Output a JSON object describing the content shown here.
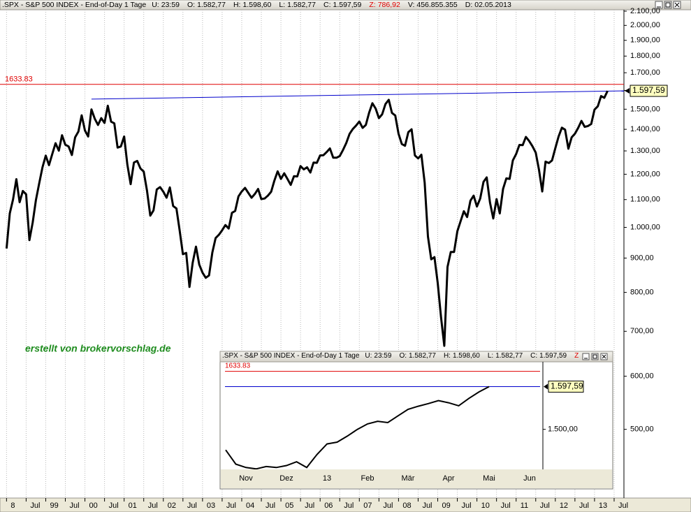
{
  "header": {
    "title": ".SPX - S&P 500 INDEX - End-of-Day 1 Tage",
    "fields": [
      {
        "label": "U:",
        "value": "23:59"
      },
      {
        "label": "O:",
        "value": "1.582,77"
      },
      {
        "label": "H:",
        "value": "1.598,60"
      },
      {
        "label": "L:",
        "value": "1.582,77"
      },
      {
        "label": "C:",
        "value": "1.597,59"
      },
      {
        "label": "Z:",
        "value": "786,92"
      },
      {
        "label": "V:",
        "value": "456.855.355"
      },
      {
        "label": "D:",
        "value": "02.05.2013"
      }
    ]
  },
  "chart_data": [
    {
      "type": "line",
      "color": "#000000",
      "log_y": true,
      "grid": "x",
      "annotation": "erstellt von brokervorschlag.de",
      "x": [
        "1998-01",
        "1998-02",
        "1998-03",
        "1998-04",
        "1998-05",
        "1998-06",
        "1998-07",
        "1998-08",
        "1998-09",
        "1998-10",
        "1998-11",
        "1998-12",
        "1999-01",
        "1999-02",
        "1999-03",
        "1999-04",
        "1999-05",
        "1999-06",
        "1999-07",
        "1999-08",
        "1999-09",
        "1999-10",
        "1999-11",
        "1999-12",
        "2000-01",
        "2000-02",
        "2000-03",
        "2000-04",
        "2000-05",
        "2000-06",
        "2000-07",
        "2000-08",
        "2000-09",
        "2000-10",
        "2000-11",
        "2000-12",
        "2001-01",
        "2001-02",
        "2001-03",
        "2001-04",
        "2001-05",
        "2001-06",
        "2001-07",
        "2001-08",
        "2001-09",
        "2001-10",
        "2001-11",
        "2001-12",
        "2002-01",
        "2002-02",
        "2002-03",
        "2002-04",
        "2002-05",
        "2002-06",
        "2002-07",
        "2002-08",
        "2002-09",
        "2002-10",
        "2002-11",
        "2002-12",
        "2003-01",
        "2003-02",
        "2003-03",
        "2003-04",
        "2003-05",
        "2003-06",
        "2003-07",
        "2003-08",
        "2003-09",
        "2003-10",
        "2003-11",
        "2003-12",
        "2004-01",
        "2004-02",
        "2004-03",
        "2004-04",
        "2004-05",
        "2004-06",
        "2004-07",
        "2004-08",
        "2004-09",
        "2004-10",
        "2004-11",
        "2004-12",
        "2005-01",
        "2005-02",
        "2005-03",
        "2005-04",
        "2005-05",
        "2005-06",
        "2005-07",
        "2005-08",
        "2005-09",
        "2005-10",
        "2005-11",
        "2005-12",
        "2006-01",
        "2006-02",
        "2006-03",
        "2006-04",
        "2006-05",
        "2006-06",
        "2006-07",
        "2006-08",
        "2006-09",
        "2006-10",
        "2006-11",
        "2006-12",
        "2007-01",
        "2007-02",
        "2007-03",
        "2007-04",
        "2007-05",
        "2007-06",
        "2007-07",
        "2007-08",
        "2007-09",
        "2007-10",
        "2007-11",
        "2007-12",
        "2008-01",
        "2008-02",
        "2008-03",
        "2008-04",
        "2008-05",
        "2008-06",
        "2008-07",
        "2008-08",
        "2008-09",
        "2008-10",
        "2008-11",
        "2008-12",
        "2009-01",
        "2009-02",
        "2009-03",
        "2009-04",
        "2009-05",
        "2009-06",
        "2009-07",
        "2009-08",
        "2009-09",
        "2009-10",
        "2009-11",
        "2009-12",
        "2010-01",
        "2010-02",
        "2010-03",
        "2010-04",
        "2010-05",
        "2010-06",
        "2010-07",
        "2010-08",
        "2010-09",
        "2010-10",
        "2010-11",
        "2010-12",
        "2011-01",
        "2011-02",
        "2011-03",
        "2011-04",
        "2011-05",
        "2011-06",
        "2011-07",
        "2011-08",
        "2011-09",
        "2011-10",
        "2011-11",
        "2011-12",
        "2012-01",
        "2012-02",
        "2012-03",
        "2012-04",
        "2012-05",
        "2012-06",
        "2012-07",
        "2012-08",
        "2012-09",
        "2012-10",
        "2012-11",
        "2012-12",
        "2013-01",
        "2013-02",
        "2013-03",
        "2013-04",
        "2013-05"
      ],
      "values": [
        930,
        1049,
        1101,
        1180,
        1090,
        1133,
        1120,
        957,
        1017,
        1098,
        1163,
        1229,
        1279,
        1238,
        1286,
        1335,
        1301,
        1372,
        1328,
        1320,
        1282,
        1362,
        1389,
        1469,
        1394,
        1366,
        1499,
        1452,
        1421,
        1455,
        1431,
        1518,
        1437,
        1429,
        1315,
        1320,
        1366,
        1240,
        1160,
        1249,
        1256,
        1224,
        1211,
        1134,
        1041,
        1060,
        1139,
        1148,
        1130,
        1107,
        1147,
        1076,
        1067,
        990,
        912,
        916,
        815,
        886,
        936,
        880,
        856,
        841,
        848,
        917,
        964,
        975,
        990,
        1008,
        996,
        1051,
        1058,
        1112,
        1131,
        1145,
        1126,
        1107,
        1121,
        1141,
        1102,
        1104,
        1115,
        1130,
        1174,
        1212,
        1181,
        1204,
        1181,
        1157,
        1192,
        1191,
        1234,
        1220,
        1229,
        1207,
        1249,
        1248,
        1280,
        1281,
        1295,
        1311,
        1270,
        1270,
        1277,
        1304,
        1336,
        1378,
        1401,
        1418,
        1438,
        1407,
        1421,
        1482,
        1531,
        1503,
        1455,
        1474,
        1527,
        1549,
        1481,
        1468,
        1379,
        1331,
        1323,
        1386,
        1400,
        1280,
        1267,
        1283,
        1166,
        969,
        896,
        903,
        826,
        735,
        666,
        873,
        919,
        919,
        987,
        1021,
        1057,
        1036,
        1096,
        1115,
        1074,
        1104,
        1169,
        1187,
        1089,
        1031,
        1102,
        1049,
        1141,
        1183,
        1181,
        1258,
        1286,
        1327,
        1326,
        1364,
        1345,
        1321,
        1292,
        1219,
        1131,
        1253,
        1247,
        1258,
        1312,
        1366,
        1408,
        1398,
        1310,
        1362,
        1379,
        1407,
        1441,
        1412,
        1416,
        1426,
        1498,
        1515,
        1569,
        1560,
        1597.59
      ],
      "xlim": [
        "1997-11",
        "2013-10"
      ],
      "xticks": [
        {
          "value": "1998-01",
          "label": "8"
        },
        {
          "value": "1998-07",
          "label": "Jul"
        },
        {
          "value": "1999-01",
          "label": "99"
        },
        {
          "value": "1999-07",
          "label": "Jul"
        },
        {
          "value": "2000-01",
          "label": "00"
        },
        {
          "value": "2000-07",
          "label": "Jul"
        },
        {
          "value": "2001-01",
          "label": "01"
        },
        {
          "value": "2001-07",
          "label": "Jul"
        },
        {
          "value": "2002-01",
          "label": "02"
        },
        {
          "value": "2002-07",
          "label": "Jul"
        },
        {
          "value": "2003-01",
          "label": "03"
        },
        {
          "value": "2003-07",
          "label": "Jul"
        },
        {
          "value": "2004-01",
          "label": "04"
        },
        {
          "value": "2004-07",
          "label": "Jul"
        },
        {
          "value": "2005-01",
          "label": "05"
        },
        {
          "value": "2005-07",
          "label": "Jul"
        },
        {
          "value": "2006-01",
          "label": "06"
        },
        {
          "value": "2006-07",
          "label": "Jul"
        },
        {
          "value": "2007-01",
          "label": "07"
        },
        {
          "value": "2007-07",
          "label": "Jul"
        },
        {
          "value": "2008-01",
          "label": "08"
        },
        {
          "value": "2008-07",
          "label": "Jul"
        },
        {
          "value": "2009-01",
          "label": "09"
        },
        {
          "value": "2009-07",
          "label": "Jul"
        },
        {
          "value": "2010-01",
          "label": "10"
        },
        {
          "value": "2010-07",
          "label": "Jul"
        },
        {
          "value": "2011-01",
          "label": "11"
        },
        {
          "value": "2011-07",
          "label": "Jul"
        },
        {
          "value": "2012-01",
          "label": "12"
        },
        {
          "value": "2012-07",
          "label": "Jul"
        },
        {
          "value": "2013-01",
          "label": "13"
        },
        {
          "value": "2013-07",
          "label": "Jul"
        }
      ],
      "ylim": [
        395,
        2110
      ],
      "yticks": [
        {
          "value": 2100,
          "label": "2.100,00"
        },
        {
          "value": 2000,
          "label": "2.000,00"
        },
        {
          "value": 1900,
          "label": "1.900,00"
        },
        {
          "value": 1800,
          "label": "1.800,00"
        },
        {
          "value": 1700,
          "label": "1.700,00"
        },
        {
          "value": 1600,
          "label": "1.600,00"
        },
        {
          "value": 1500,
          "label": "1.500,00"
        },
        {
          "value": 1400,
          "label": "1.400,00"
        },
        {
          "value": 1300,
          "label": "1.300,00"
        },
        {
          "value": 1200,
          "label": "1.200,00"
        },
        {
          "value": 1100,
          "label": "1.100,00"
        },
        {
          "value": 1000,
          "label": "1.000,00"
        },
        {
          "value": 900,
          "label": "900,00"
        },
        {
          "value": 800,
          "label": "800,00"
        },
        {
          "value": 700,
          "label": "700,00"
        },
        {
          "value": 600,
          "label": "600,00"
        },
        {
          "value": 500,
          "label": "500,00"
        }
      ],
      "hlines": [
        {
          "value": 1633.83,
          "color": "#e00000"
        }
      ],
      "trend_line": {
        "x": [
          "2000-03",
          "2013-10"
        ],
        "values": [
          1553,
          1597.59
        ],
        "color": "#0000cc"
      },
      "last_value": {
        "value": 1597.59,
        "label": "1.597,59"
      }
    },
    {
      "type": "line",
      "color": "#000000",
      "log_y": true,
      "categories": [
        null,
        null,
        "Nov",
        null,
        null,
        null,
        "Dez",
        null,
        null,
        null,
        "13",
        null,
        null,
        null,
        "Feb",
        null,
        null,
        null,
        "Mär",
        null,
        null,
        null,
        "Apr",
        null,
        null,
        null,
        "Mai",
        null,
        null,
        null,
        "Jun",
        null
      ],
      "values": [
        1455,
        1425,
        1418,
        1415,
        1420,
        1418,
        1422,
        1430,
        1418,
        1445,
        1468,
        1472,
        1485,
        1500,
        1512,
        1518,
        1515,
        1530,
        1545,
        1552,
        1558,
        1565,
        1560,
        1553,
        1570,
        1585,
        1597.59,
        null,
        null,
        null,
        null,
        null
      ],
      "ylim": [
        1414,
        1657
      ],
      "yticks": [
        {
          "value": 1500,
          "label": "1.500,00"
        }
      ],
      "hlines": [
        {
          "value": 1633.83,
          "color": "#e00000"
        }
      ],
      "trend_line": {
        "values": [
          1597.59,
          1597.59
        ],
        "color": "#0000cc"
      },
      "last_value": {
        "value": 1597.59,
        "label": "1.597,59"
      }
    }
  ]
}
